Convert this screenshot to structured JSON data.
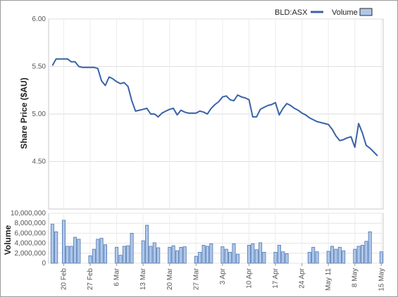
{
  "chart_data": [
    {
      "type": "line",
      "ylabel": "Share Price ($AU)",
      "ylim": [
        4.0,
        6.0
      ],
      "yticks": [
        "6.00",
        "5.50",
        "5.00",
        "4.50"
      ],
      "grid": true,
      "legend": "top-right",
      "series": [
        {
          "name": "BLD:ASX",
          "color": "#3a62a8",
          "points": [
            [
              "2017-02-17",
              5.51
            ],
            [
              "2017-02-18",
              5.58
            ],
            [
              "2017-02-19",
              5.58
            ],
            [
              "2017-02-20",
              5.58
            ],
            [
              "2017-02-21",
              5.58
            ],
            [
              "2017-02-22",
              5.55
            ],
            [
              "2017-02-23",
              5.55
            ],
            [
              "2017-02-24",
              5.5
            ],
            [
              "2017-02-25",
              5.49
            ],
            [
              "2017-02-26",
              5.49
            ],
            [
              "2017-02-27",
              5.49
            ],
            [
              "2017-02-28",
              5.49
            ],
            [
              "2017-03-01",
              5.48
            ],
            [
              "2017-03-02",
              5.35
            ],
            [
              "2017-03-03",
              5.3
            ],
            [
              "2017-03-04",
              5.39
            ],
            [
              "2017-03-05",
              5.37
            ],
            [
              "2017-03-06",
              5.34
            ],
            [
              "2017-03-07",
              5.32
            ],
            [
              "2017-03-08",
              5.33
            ],
            [
              "2017-03-09",
              5.29
            ],
            [
              "2017-03-10",
              5.14
            ],
            [
              "2017-03-11",
              5.03
            ],
            [
              "2017-03-12",
              5.04
            ],
            [
              "2017-03-13",
              5.05
            ],
            [
              "2017-03-14",
              5.06
            ],
            [
              "2017-03-15",
              5.0
            ],
            [
              "2017-03-16",
              5.0
            ],
            [
              "2017-03-17",
              4.97
            ],
            [
              "2017-03-18",
              5.01
            ],
            [
              "2017-03-19",
              5.03
            ],
            [
              "2017-03-20",
              5.05
            ],
            [
              "2017-03-21",
              5.06
            ],
            [
              "2017-03-22",
              4.99
            ],
            [
              "2017-03-23",
              5.04
            ],
            [
              "2017-03-24",
              5.02
            ],
            [
              "2017-03-25",
              5.01
            ],
            [
              "2017-03-26",
              5.01
            ],
            [
              "2017-03-27",
              5.01
            ],
            [
              "2017-03-28",
              5.03
            ],
            [
              "2017-03-29",
              5.02
            ],
            [
              "2017-03-30",
              5.0
            ],
            [
              "2017-03-31",
              5.06
            ],
            [
              "2017-04-01",
              5.1
            ],
            [
              "2017-04-02",
              5.13
            ],
            [
              "2017-04-03",
              5.18
            ],
            [
              "2017-04-04",
              5.19
            ],
            [
              "2017-04-05",
              5.15
            ],
            [
              "2017-04-06",
              5.14
            ],
            [
              "2017-04-07",
              5.2
            ],
            [
              "2017-04-08",
              5.18
            ],
            [
              "2017-04-09",
              5.17
            ],
            [
              "2017-04-10",
              5.15
            ],
            [
              "2017-04-11",
              4.97
            ],
            [
              "2017-04-12",
              4.97
            ],
            [
              "2017-04-13",
              5.05
            ],
            [
              "2017-04-14",
              5.07
            ],
            [
              "2017-04-15",
              5.09
            ],
            [
              "2017-04-16",
              5.1
            ],
            [
              "2017-04-17",
              5.12
            ],
            [
              "2017-04-18",
              4.99
            ],
            [
              "2017-04-19",
              5.06
            ],
            [
              "2017-04-20",
              5.11
            ],
            [
              "2017-04-21",
              5.09
            ],
            [
              "2017-04-22",
              5.06
            ],
            [
              "2017-04-23",
              5.04
            ],
            [
              "2017-04-24",
              5.01
            ],
            [
              "2017-04-25",
              4.99
            ],
            [
              "2017-04-26",
              4.96
            ],
            [
              "2017-04-27",
              4.94
            ],
            [
              "2017-04-28",
              4.92
            ],
            [
              "2017-04-29",
              4.91
            ],
            [
              "2017-04-30",
              4.9
            ],
            [
              "2017-05-01",
              4.89
            ],
            [
              "2017-05-02",
              4.84
            ],
            [
              "2017-05-03",
              4.77
            ],
            [
              "2017-05-04",
              4.72
            ],
            [
              "2017-05-05",
              4.73
            ],
            [
              "2017-05-06",
              4.75
            ],
            [
              "2017-05-07",
              4.76
            ],
            [
              "2017-05-08",
              4.65
            ],
            [
              "2017-05-09",
              4.9
            ],
            [
              "2017-05-10",
              4.8
            ],
            [
              "2017-05-11",
              4.67
            ],
            [
              "2017-05-12",
              4.64
            ],
            [
              "2017-05-13",
              4.6
            ],
            [
              "2017-05-14",
              4.56
            ]
          ]
        }
      ]
    },
    {
      "type": "bar",
      "ylabel": "Volume",
      "ylim": [
        0,
        10000000
      ],
      "yticks": [
        "10,000,000",
        "8,000,000",
        "6,000,000",
        "4,000,000",
        "2,000,000",
        "0"
      ],
      "legend": "top-right",
      "xlabels": [
        "20 Feb",
        "27 Feb",
        "6 Mar",
        "13 Mar",
        "20 Mar",
        "27 Mar",
        "3 Apr",
        "10 Apr",
        "17 Apr",
        "24 Apr",
        "May 11",
        "8 May",
        "15 May"
      ],
      "series": [
        {
          "name": "Volume",
          "color": "#aec8ea",
          "points": [
            [
              "2017-02-17",
              7800000
            ],
            [
              "2017-02-18",
              6300000
            ],
            [
              "2017-02-20",
              8600000
            ],
            [
              "2017-02-21",
              3400000
            ],
            [
              "2017-02-22",
              3400000
            ],
            [
              "2017-02-23",
              5200000
            ],
            [
              "2017-02-24",
              4800000
            ],
            [
              "2017-02-27",
              1500000
            ],
            [
              "2017-02-28",
              2800000
            ],
            [
              "2017-03-01",
              4800000
            ],
            [
              "2017-03-02",
              5000000
            ],
            [
              "2017-03-03",
              3700000
            ],
            [
              "2017-03-06",
              3200000
            ],
            [
              "2017-03-07",
              1600000
            ],
            [
              "2017-03-08",
              3400000
            ],
            [
              "2017-03-09",
              3500000
            ],
            [
              "2017-03-10",
              6000000
            ],
            [
              "2017-03-13",
              4500000
            ],
            [
              "2017-03-14",
              7600000
            ],
            [
              "2017-03-15",
              3400000
            ],
            [
              "2017-03-16",
              4100000
            ],
            [
              "2017-03-17",
              3100000
            ],
            [
              "2017-03-20",
              3200000
            ],
            [
              "2017-03-21",
              3500000
            ],
            [
              "2017-03-22",
              2500000
            ],
            [
              "2017-03-23",
              3200000
            ],
            [
              "2017-03-24",
              3300000
            ],
            [
              "2017-03-27",
              1400000
            ],
            [
              "2017-03-28",
              2200000
            ],
            [
              "2017-03-29",
              3600000
            ],
            [
              "2017-03-30",
              3400000
            ],
            [
              "2017-03-31",
              3900000
            ],
            [
              "2017-04-03",
              3300000
            ],
            [
              "2017-04-04",
              2800000
            ],
            [
              "2017-04-05",
              2200000
            ],
            [
              "2017-04-06",
              3900000
            ],
            [
              "2017-04-07",
              1800000
            ],
            [
              "2017-04-10",
              3600000
            ],
            [
              "2017-04-11",
              3900000
            ],
            [
              "2017-04-12",
              2700000
            ],
            [
              "2017-04-13",
              4100000
            ],
            [
              "2017-04-14",
              2200000
            ],
            [
              "2017-04-17",
              2200000
            ],
            [
              "2017-04-18",
              3600000
            ],
            [
              "2017-04-19",
              2300000
            ],
            [
              "2017-04-20",
              1900000
            ],
            [
              "2017-04-26",
              2200000
            ],
            [
              "2017-04-27",
              3200000
            ],
            [
              "2017-04-28",
              2300000
            ],
            [
              "2017-05-01",
              2400000
            ],
            [
              "2017-05-02",
              3400000
            ],
            [
              "2017-05-03",
              2800000
            ],
            [
              "2017-05-04",
              3200000
            ],
            [
              "2017-05-05",
              2500000
            ],
            [
              "2017-05-08",
              2800000
            ],
            [
              "2017-05-09",
              3400000
            ],
            [
              "2017-05-10",
              3600000
            ],
            [
              "2017-05-11",
              4400000
            ],
            [
              "2017-05-12",
              6300000
            ],
            [
              "2017-05-15",
              2300000
            ]
          ]
        }
      ]
    }
  ]
}
